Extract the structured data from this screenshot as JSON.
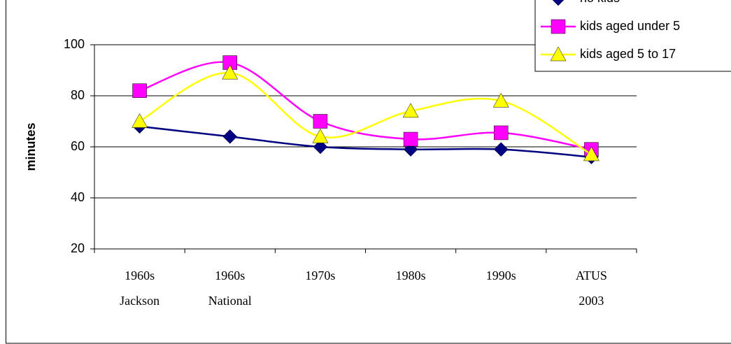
{
  "chart_data": {
    "type": "line",
    "y_label": "minutes",
    "categories": [
      [
        "1960s",
        "Jackson"
      ],
      [
        "1960s",
        "National"
      ],
      [
        "1970s"
      ],
      [
        "1980s"
      ],
      [
        "1990s"
      ],
      [
        "ATUS",
        "2003"
      ]
    ],
    "series": [
      {
        "name": "no kids",
        "color": "#000080",
        "marker": "diamond",
        "values": [
          68,
          64,
          60,
          59,
          59,
          56
        ]
      },
      {
        "name": "kids aged under 5",
        "color": "#ff00ff",
        "marker": "square",
        "values": [
          82,
          93,
          70,
          63,
          65.5,
          59
        ]
      },
      {
        "name": "kids aged 5 to 17",
        "color": "#ffff00",
        "marker": "triangle",
        "values": [
          70,
          89,
          64,
          74,
          78,
          57
        ]
      }
    ],
    "ylim": [
      20,
      100
    ],
    "yticks": [
      20,
      40,
      60,
      80,
      100
    ],
    "grid": true,
    "legend": "top-right"
  }
}
